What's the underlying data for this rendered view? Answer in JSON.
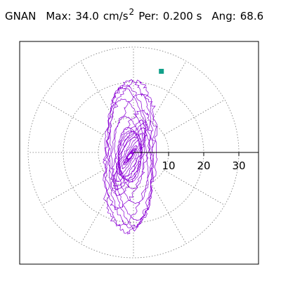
{
  "header": {
    "station": "GNAN",
    "max_label": "Max:",
    "max_value": "34.0",
    "max_unit": "cm/s",
    "max_unit_sup": "2",
    "per_label": "Per:",
    "per_value": "0.200 s",
    "ang_label": "Ang:",
    "ang_value": "68.6"
  },
  "chart_data": {
    "type": "polar-orbit",
    "rings": [
      10,
      20,
      30
    ],
    "tick_labels": [
      "10",
      "20",
      "30"
    ],
    "r_max": 30,
    "ang_deg": 68.6,
    "peak_value": 34.0,
    "grid_style": "dotted",
    "colors": {
      "trace": "#8a00d4",
      "marker": "#12a08a",
      "grid": "#777777",
      "axis": "#000000"
    }
  }
}
